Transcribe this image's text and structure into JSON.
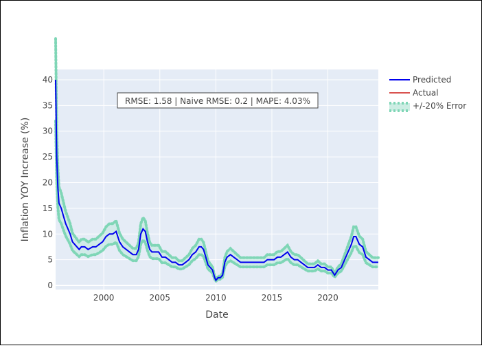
{
  "chart_data": {
    "type": "line",
    "title": "",
    "xlabel": "Date",
    "ylabel": "Inflation YOY Increase (%)",
    "xlim": [
      1995.7,
      2024.5
    ],
    "ylim": [
      -0.8,
      42
    ],
    "x_ticks": [
      2000,
      2005,
      2010,
      2015,
      2020
    ],
    "x_tick_labels": [
      "2000",
      "2005",
      "2010",
      "2015",
      "2020"
    ],
    "y_ticks": [
      0,
      5,
      10,
      15,
      20,
      25,
      30,
      35,
      40
    ],
    "y_tick_labels": [
      "0",
      "5",
      "10",
      "15",
      "20",
      "25",
      "30",
      "35",
      "40"
    ],
    "grid": true,
    "legend_position": "top-right",
    "annotation": "RMSE: 1.58 | Naive RMSE: 0.2 | MAPE: 4.03%",
    "series": [
      {
        "name": "Predicted",
        "color": "#0000ee",
        "style": "solid",
        "x": [
          1995.7,
          1995.8,
          1995.9,
          1996.0,
          1996.2,
          1996.4,
          1996.6,
          1996.8,
          1997.0,
          1997.2,
          1997.4,
          1997.6,
          1997.8,
          1998.0,
          1998.3,
          1998.6,
          1999.0,
          1999.3,
          1999.6,
          1999.9,
          2000.2,
          2000.5,
          2000.8,
          2001.1,
          2001.4,
          2001.7,
          2002.0,
          2002.3,
          2002.6,
          2002.9,
          2003.1,
          2003.3,
          2003.5,
          2003.7,
          2003.9,
          2004.1,
          2004.3,
          2004.6,
          2004.9,
          2005.2,
          2005.5,
          2005.8,
          2006.1,
          2006.4,
          2006.7,
          2007.0,
          2007.3,
          2007.6,
          2007.9,
          2008.2,
          2008.5,
          2008.7,
          2008.9,
          2009.1,
          2009.3,
          2009.5,
          2009.7,
          2009.9,
          2010.0,
          2010.2,
          2010.4,
          2010.6,
          2010.8,
          2011.0,
          2011.3,
          2011.6,
          2011.9,
          2012.2,
          2012.5,
          2012.8,
          2013.1,
          2013.4,
          2013.7,
          2014.0,
          2014.3,
          2014.6,
          2014.9,
          2015.2,
          2015.5,
          2015.8,
          2016.1,
          2016.4,
          2016.7,
          2017.0,
          2017.3,
          2017.6,
          2017.9,
          2018.2,
          2018.5,
          2018.8,
          2019.1,
          2019.4,
          2019.7,
          2020.0,
          2020.3,
          2020.6,
          2020.9,
          2021.2,
          2021.5,
          2021.8,
          2022.1,
          2022.3,
          2022.5,
          2022.8,
          2023.1,
          2023.4,
          2023.7,
          2024.0,
          2024.3,
          2024.5
        ],
        "y": [
          40,
          25,
          19,
          16,
          15,
          13.5,
          12,
          11,
          10,
          8.5,
          8,
          7.5,
          7,
          7.5,
          7.5,
          7,
          7.5,
          7.5,
          8,
          8.5,
          9.5,
          10,
          10,
          10.5,
          8.5,
          7.5,
          7,
          6.5,
          6,
          6,
          7,
          10,
          11,
          10.5,
          8.5,
          7,
          6.5,
          6.5,
          6.5,
          5.5,
          5.5,
          5,
          4.5,
          4.5,
          4,
          4,
          4.5,
          5,
          6,
          6.5,
          7.5,
          7.5,
          7,
          5.5,
          4,
          3.5,
          3,
          1.5,
          1,
          1.5,
          1.5,
          2,
          4.5,
          5.5,
          6,
          5.5,
          5,
          4.5,
          4.5,
          4.5,
          4.5,
          4.5,
          4.5,
          4.5,
          4.5,
          5,
          5,
          5,
          5.5,
          5.5,
          6,
          6.5,
          5.5,
          5,
          5,
          4.5,
          4,
          3.5,
          3.5,
          3.5,
          4,
          3.5,
          3.5,
          3,
          3,
          2,
          3,
          3.5,
          5,
          6.5,
          8,
          9.5,
          9.5,
          8,
          7.5,
          5.5,
          5,
          4.5,
          4.5,
          4.5
        ]
      },
      {
        "name": "Actual",
        "color": "#d9534f",
        "style": "solid",
        "x": [],
        "y": []
      },
      {
        "name": "+/-20% Error",
        "color": "#7fd6b6",
        "style": "dotted-band",
        "band_factor": 0.2
      }
    ]
  }
}
